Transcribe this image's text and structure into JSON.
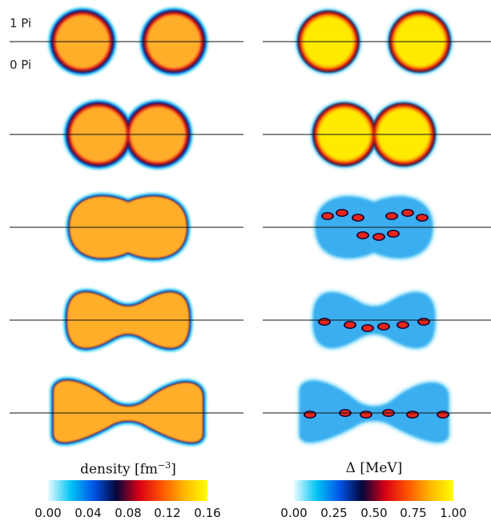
{
  "labels": {
    "top": "1 Pi",
    "bottom": "0 Pi"
  },
  "colorbars": [
    {
      "title_text": "density [fm",
      "title_exp": "−3",
      "title_close": "]",
      "ticks": [
        "0.00",
        "0.04",
        "0.08",
        "0.12",
        "0.16"
      ]
    },
    {
      "title_text": "Δ [MeV]",
      "ticks": [
        "0.00",
        "0.25",
        "0.50",
        "0.75",
        "1.00"
      ]
    }
  ],
  "colormap": [
    "#e8fbff",
    "#00c4f4",
    "#0055e8",
    "#05053a",
    "#d80015",
    "#ff5500",
    "#ffb800",
    "#ffff00"
  ],
  "rows": 5,
  "columns": [
    "density",
    "pairing gap"
  ]
}
